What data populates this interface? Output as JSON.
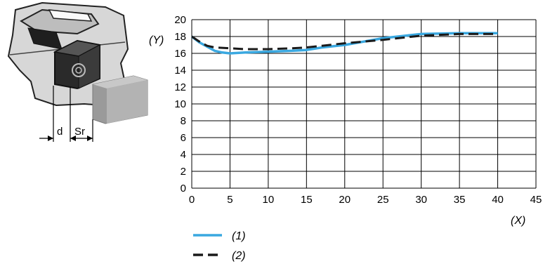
{
  "diagram": {
    "label_d": "d",
    "label_sr": "Sr"
  },
  "chart_data": {
    "type": "line",
    "title": "",
    "xlabel": "(X)",
    "ylabel": "(Y)",
    "xlim": [
      0,
      45
    ],
    "ylim": [
      0,
      20
    ],
    "xticks": [
      0,
      5,
      10,
      15,
      20,
      25,
      30,
      35,
      40,
      45
    ],
    "yticks": [
      0,
      2,
      4,
      6,
      8,
      10,
      12,
      14,
      16,
      18,
      20
    ],
    "grid": true,
    "legend_position": "bottom-left",
    "series": [
      {
        "name": "(1)",
        "color": "#3aa8e0",
        "dash": "solid",
        "x": [
          0,
          1,
          2,
          3,
          4,
          5,
          7,
          10,
          13,
          15,
          17,
          20,
          25,
          30,
          35,
          40
        ],
        "y": [
          18,
          17.3,
          16.8,
          16.3,
          16.1,
          16.0,
          16.1,
          16.2,
          16.3,
          16.4,
          16.7,
          17.0,
          17.8,
          18.3,
          18.4,
          18.4
        ]
      },
      {
        "name": "(2)",
        "color": "#1a1a1a",
        "dash": "dashed",
        "x": [
          0,
          1,
          2,
          3,
          5,
          7,
          10,
          13,
          15,
          17,
          20,
          25,
          30,
          35,
          40
        ],
        "y": [
          18,
          17.4,
          16.9,
          16.7,
          16.6,
          16.5,
          16.5,
          16.6,
          16.7,
          16.9,
          17.2,
          17.6,
          18.1,
          18.3,
          18.3
        ]
      }
    ]
  }
}
